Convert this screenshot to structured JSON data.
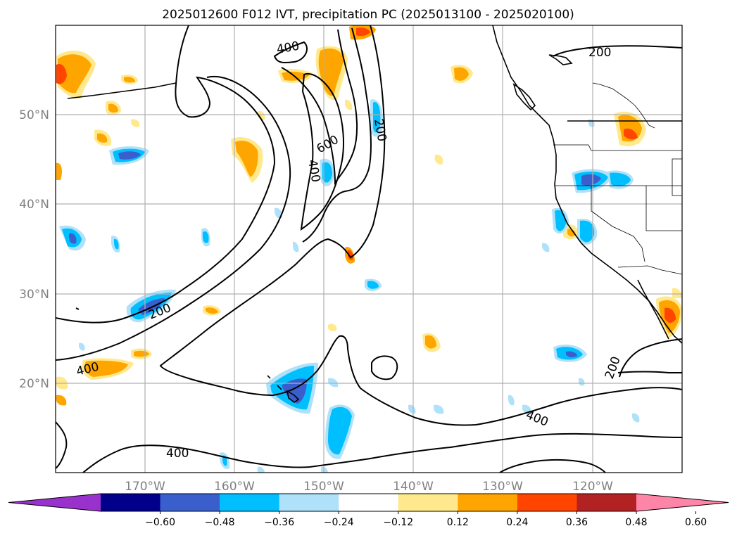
{
  "title": "2025012600 F012 IVT, precipitation PC (2025013100 - 2025020100)",
  "map": {
    "lat_labels": [
      "50°N",
      "40°N",
      "30°N",
      "20°N"
    ],
    "lon_labels": [
      "170°W",
      "160°W",
      "150°W",
      "140°W",
      "130°W",
      "120°W"
    ],
    "extent": {
      "lon_min": -180,
      "lon_max": -110,
      "lat_min": 10,
      "lat_max": 60
    },
    "ivt_contour_levels": [
      200,
      400,
      600
    ],
    "contour_labels": [
      "400",
      "600",
      "400",
      "200",
      "200",
      "400",
      "200",
      "400",
      "400",
      "200"
    ]
  },
  "colorbar": {
    "ticks": [
      "−0.60",
      "−0.48",
      "−0.36",
      "−0.24",
      "−0.12",
      "0.12",
      "0.24",
      "0.36",
      "0.48",
      "0.60"
    ],
    "colors": [
      "#9932cc",
      "#00008b",
      "#3a5fcd",
      "#00bfff",
      "#afe1fa",
      "#ffffff",
      "#ffe98c",
      "#ffa500",
      "#ff4500",
      "#b22222",
      "#ff85a8"
    ],
    "extend": "both"
  },
  "chart_data": {
    "type": "heatmap",
    "title": "2025012600 F012 IVT, precipitation PC (2025013100 - 2025020100)",
    "variables": [
      "IVT contours",
      "precipitation PC shading"
    ],
    "ivt_contour_levels": [
      200,
      400,
      600
    ],
    "pc_levels": [
      -0.6,
      -0.48,
      -0.36,
      -0.24,
      -0.12,
      0.12,
      0.24,
      0.36,
      0.48,
      0.6
    ],
    "xlabel": "",
    "ylabel": "",
    "x_ticks": [
      "170°W",
      "160°W",
      "150°W",
      "140°W",
      "130°W",
      "120°W"
    ],
    "y_ticks": [
      "20°N",
      "30°N",
      "40°N",
      "50°N"
    ],
    "grid": true,
    "legend": "bottom colorbar"
  }
}
